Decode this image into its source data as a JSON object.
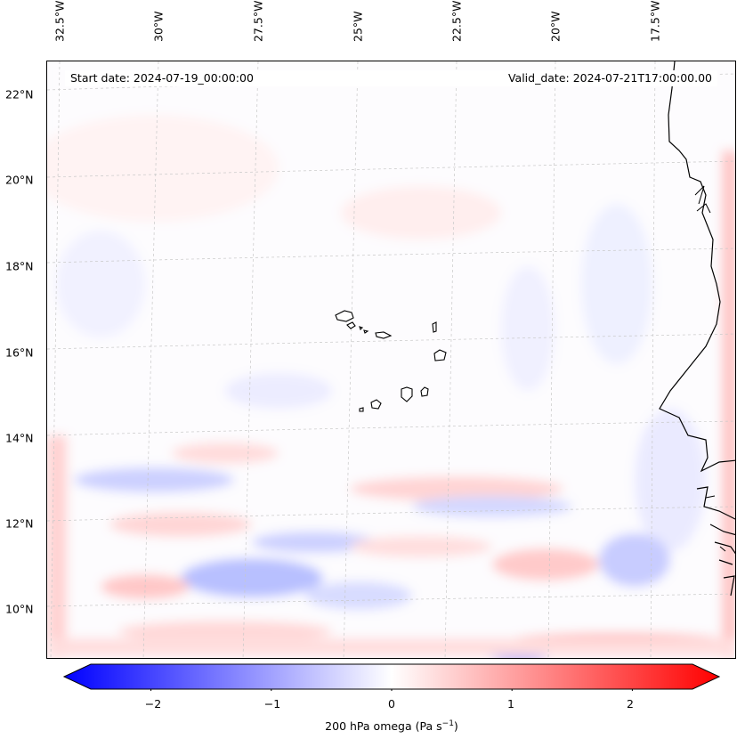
{
  "map": {
    "start_date": "Start date: 2024-07-19_00:00:00",
    "valid_date": "Valid_date: 2024-07-21T17:00:00.00",
    "lon_labels": [
      "32.5°W",
      "30°W",
      "27.5°W",
      "25°W",
      "22.5°W",
      "20°W",
      "17.5°W"
    ],
    "lat_labels": [
      "22°N",
      "20°N",
      "18°N",
      "16°N",
      "14°N",
      "12°N",
      "10°N"
    ],
    "variable": "200 hPa omega",
    "units": "Pa s",
    "units_exponent": "−1"
  },
  "colorbar": {
    "ticks": [
      "−2",
      "−1",
      "0",
      "1",
      "2"
    ],
    "range": [
      -2.7,
      2.7
    ],
    "colors": {
      "low": "#0000ff",
      "mid": "#ffffff",
      "high": "#ff0000"
    }
  },
  "colors": {
    "coastline": "#000000",
    "gridline": "#c8c8c8",
    "sea_tint": "#fdfcfe"
  }
}
